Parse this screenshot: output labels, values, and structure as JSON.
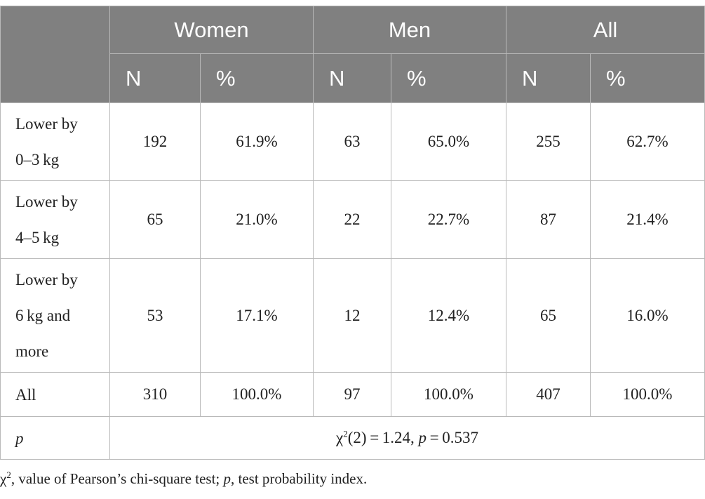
{
  "header": {
    "groups": [
      "Women",
      "Men",
      "All"
    ],
    "sub": [
      "N",
      "%",
      "N",
      "%",
      "N",
      "%"
    ]
  },
  "rows": [
    {
      "label_line1": "Lower by",
      "label_line2": "0–3 kg",
      "values": [
        "192",
        "61.9%",
        "63",
        "65.0%",
        "255",
        "62.7%"
      ]
    },
    {
      "label_line1": "Lower by",
      "label_line2": "4–5 kg",
      "values": [
        "65",
        "21.0%",
        "22",
        "22.7%",
        "87",
        "21.4%"
      ]
    },
    {
      "label_line1": "Lower by",
      "label_line2": "6 kg and",
      "label_line3": "more",
      "values": [
        "53",
        "17.1%",
        "12",
        "12.4%",
        "65",
        "16.0%"
      ]
    },
    {
      "label": "All",
      "values": [
        "310",
        "100.0%",
        "97",
        "100.0%",
        "407",
        "100.0%"
      ]
    }
  ],
  "p_row": {
    "label": "p",
    "chi": "χ",
    "sup": "2",
    "stat_text": "(2) = 1.24, ",
    "p_italic": "p",
    "p_value": " = 0.537"
  },
  "footnote": {
    "chi": "χ",
    "sup": "2",
    "text1": ", value of Pearson’s chi-square test; ",
    "p": "p",
    "text2": ", test probability index."
  }
}
